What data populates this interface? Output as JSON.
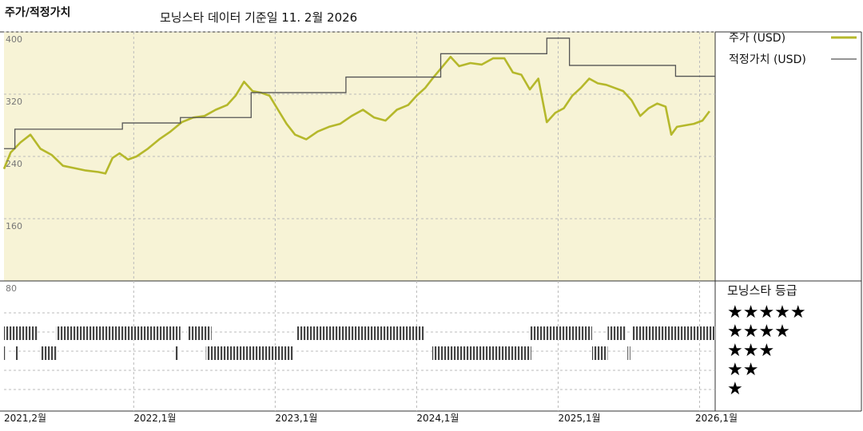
{
  "header": {
    "title": "주가/적정가치",
    "subtitle": "모닝스타 데이터 기준일 11. 2월 2026"
  },
  "colors": {
    "price": "#b5b82b",
    "fair_value": "#555555",
    "plot_bg": "#f7f3d6",
    "grid": "#bbbbbb",
    "rating_bar": "#444444"
  },
  "chart_data": {
    "type": "line",
    "x_axis": {
      "unit": "year-fraction",
      "range": [
        2021.083,
        2026.11
      ],
      "ticks": [
        {
          "x": 2021.083,
          "label": "2021,2월"
        },
        {
          "x": 2022.0,
          "label": "2022,1월"
        },
        {
          "x": 2023.0,
          "label": "2023,1월"
        },
        {
          "x": 2024.0,
          "label": "2024,1월"
        },
        {
          "x": 2025.0,
          "label": "2025,1월"
        },
        {
          "x": 2026.0,
          "label": "2026,1월"
        }
      ]
    },
    "y_axis": {
      "range": [
        80,
        400
      ],
      "ticks": [
        400,
        320,
        240,
        160,
        80
      ],
      "grid": true
    },
    "legend": {
      "position": "right",
      "entries": [
        "주가 (USD)",
        "적정가치 (USD)"
      ]
    },
    "series": [
      {
        "name": "주가 (USD)",
        "style": "line-thick",
        "points": [
          [
            2021.083,
            224
          ],
          [
            2021.13,
            245
          ],
          [
            2021.2,
            258
          ],
          [
            2021.27,
            268
          ],
          [
            2021.34,
            250
          ],
          [
            2021.42,
            242
          ],
          [
            2021.5,
            228
          ],
          [
            2021.58,
            225
          ],
          [
            2021.66,
            222
          ],
          [
            2021.75,
            220
          ],
          [
            2021.8,
            218
          ],
          [
            2021.85,
            238
          ],
          [
            2021.9,
            244
          ],
          [
            2021.96,
            236
          ],
          [
            2022.02,
            240
          ],
          [
            2022.1,
            250
          ],
          [
            2022.18,
            262
          ],
          [
            2022.26,
            272
          ],
          [
            2022.34,
            284
          ],
          [
            2022.42,
            290
          ],
          [
            2022.5,
            292
          ],
          [
            2022.58,
            300
          ],
          [
            2022.66,
            306
          ],
          [
            2022.72,
            318
          ],
          [
            2022.78,
            336
          ],
          [
            2022.84,
            324
          ],
          [
            2022.9,
            322
          ],
          [
            2022.96,
            318
          ],
          [
            2023.02,
            300
          ],
          [
            2023.08,
            282
          ],
          [
            2023.14,
            268
          ],
          [
            2023.22,
            262
          ],
          [
            2023.3,
            272
          ],
          [
            2023.38,
            278
          ],
          [
            2023.46,
            282
          ],
          [
            2023.54,
            292
          ],
          [
            2023.62,
            300
          ],
          [
            2023.7,
            290
          ],
          [
            2023.78,
            286
          ],
          [
            2023.86,
            300
          ],
          [
            2023.94,
            306
          ],
          [
            2024.0,
            318
          ],
          [
            2024.06,
            328
          ],
          [
            2024.12,
            342
          ],
          [
            2024.18,
            355
          ],
          [
            2024.24,
            368
          ],
          [
            2024.3,
            356
          ],
          [
            2024.38,
            360
          ],
          [
            2024.46,
            358
          ],
          [
            2024.54,
            366
          ],
          [
            2024.62,
            366
          ],
          [
            2024.68,
            348
          ],
          [
            2024.74,
            345
          ],
          [
            2024.8,
            326
          ],
          [
            2024.86,
            340
          ],
          [
            2024.92,
            284
          ],
          [
            2024.98,
            296
          ],
          [
            2025.04,
            302
          ],
          [
            2025.1,
            318
          ],
          [
            2025.16,
            328
          ],
          [
            2025.22,
            340
          ],
          [
            2025.28,
            334
          ],
          [
            2025.34,
            332
          ],
          [
            2025.4,
            328
          ],
          [
            2025.46,
            324
          ],
          [
            2025.52,
            312
          ],
          [
            2025.58,
            292
          ],
          [
            2025.64,
            302
          ],
          [
            2025.7,
            308
          ],
          [
            2025.76,
            304
          ],
          [
            2025.8,
            268
          ],
          [
            2025.84,
            278
          ],
          [
            2025.9,
            280
          ],
          [
            2025.96,
            282
          ],
          [
            2026.02,
            286
          ],
          [
            2026.07,
            298
          ]
        ]
      },
      {
        "name": "적정가치 (USD)",
        "style": "step-thin",
        "points": [
          [
            2021.083,
            250
          ],
          [
            2021.16,
            275
          ],
          [
            2021.92,
            283
          ],
          [
            2022.33,
            290
          ],
          [
            2022.83,
            322
          ],
          [
            2023.5,
            342
          ],
          [
            2024.17,
            372
          ],
          [
            2024.92,
            392
          ],
          [
            2025.08,
            357
          ],
          [
            2025.83,
            343
          ],
          [
            2026.11,
            343
          ]
        ]
      }
    ],
    "rating_panel": {
      "title": "모닝스타 등급",
      "levels": [
        "★★★★★",
        "★★★★",
        "★★★",
        "★★",
        "★"
      ],
      "segments": [
        {
          "level": 4,
          "from": 2021.083,
          "to": 2021.32
        },
        {
          "level": 4,
          "from": 2021.45,
          "to": 2022.33
        },
        {
          "level": 4,
          "from": 2022.38,
          "to": 2022.55
        },
        {
          "level": 4,
          "from": 2023.15,
          "to": 2024.05
        },
        {
          "level": 4,
          "from": 2024.8,
          "to": 2025.24
        },
        {
          "level": 4,
          "from": 2025.35,
          "to": 2025.48
        },
        {
          "level": 4,
          "from": 2025.52,
          "to": 2026.11
        },
        {
          "level": 3,
          "from": 2021.083,
          "to": 2021.1
        },
        {
          "level": 3,
          "from": 2021.16,
          "to": 2021.18
        },
        {
          "level": 3,
          "from": 2021.34,
          "to": 2021.46
        },
        {
          "level": 3,
          "from": 2022.29,
          "to": 2022.32
        },
        {
          "level": 3,
          "from": 2022.51,
          "to": 2023.13
        },
        {
          "level": 3,
          "from": 2024.11,
          "to": 2024.81
        },
        {
          "level": 3,
          "from": 2025.24,
          "to": 2025.35
        },
        {
          "level": 3,
          "from": 2025.49,
          "to": 2025.51
        }
      ]
    }
  }
}
